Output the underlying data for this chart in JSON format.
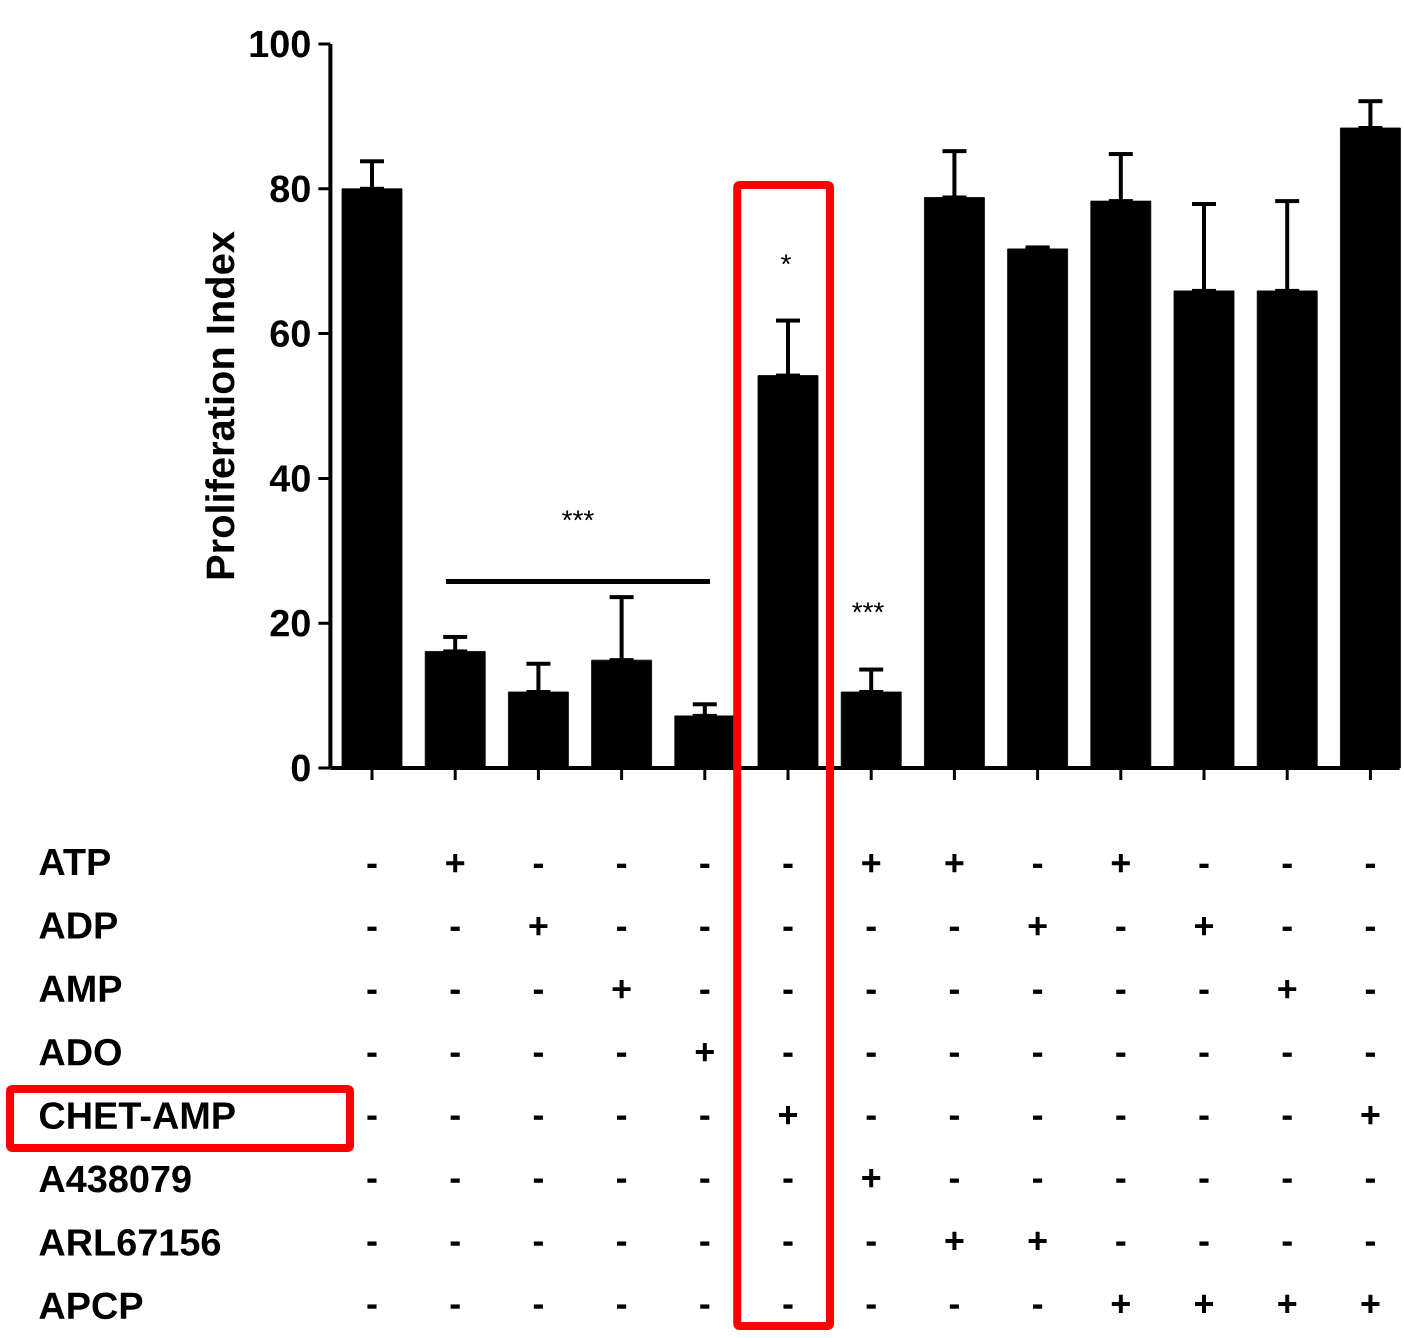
{
  "chart_data": {
    "type": "bar",
    "ylabel": "Proliferation Index",
    "categories": [
      "- - - - - - - -",
      "+ - - - - - - -",
      "- + - - - - - -",
      "- - + - - - - -",
      "- - - + - - - -",
      "- - - - + - - -",
      "+ - - - - + - -",
      "+ - - - - - + -",
      "- + - - - - + -",
      "+ - - - - - - +",
      "- + - - - - - +",
      "- - + - - - - +",
      "- - - - + - - +"
    ],
    "values": [
      80,
      16.1,
      10.5,
      14.9,
      7.2,
      54.2,
      10.5,
      78.8,
      71.7,
      78.3,
      65.9,
      65.9,
      88.4
    ],
    "errors": [
      [
        80,
        83.8
      ],
      [
        16.1,
        18.1
      ],
      [
        10.5,
        14.4
      ],
      [
        14.9,
        23.6
      ],
      [
        7.2,
        8.8
      ],
      [
        54.2,
        61.8
      ],
      [
        10.5,
        13.6
      ],
      [
        78.8,
        85.2
      ],
      [
        71.7,
        71.9
      ],
      [
        78.3,
        84.8
      ],
      [
        65.9,
        77.9
      ],
      [
        65.9,
        78.3
      ],
      [
        88.4,
        92.1
      ]
    ],
    "color": "#000000",
    "ylim": [
      0,
      100
    ],
    "yticks": [
      0,
      20,
      40,
      60,
      80,
      100
    ],
    "grid": false,
    "annotations": [
      "ATP",
      "ADP",
      "AMP",
      "ADO",
      "CHET-AMP",
      "A438079",
      "ARL67156",
      "APCP",
      "***",
      "*",
      "***"
    ]
  }
}
